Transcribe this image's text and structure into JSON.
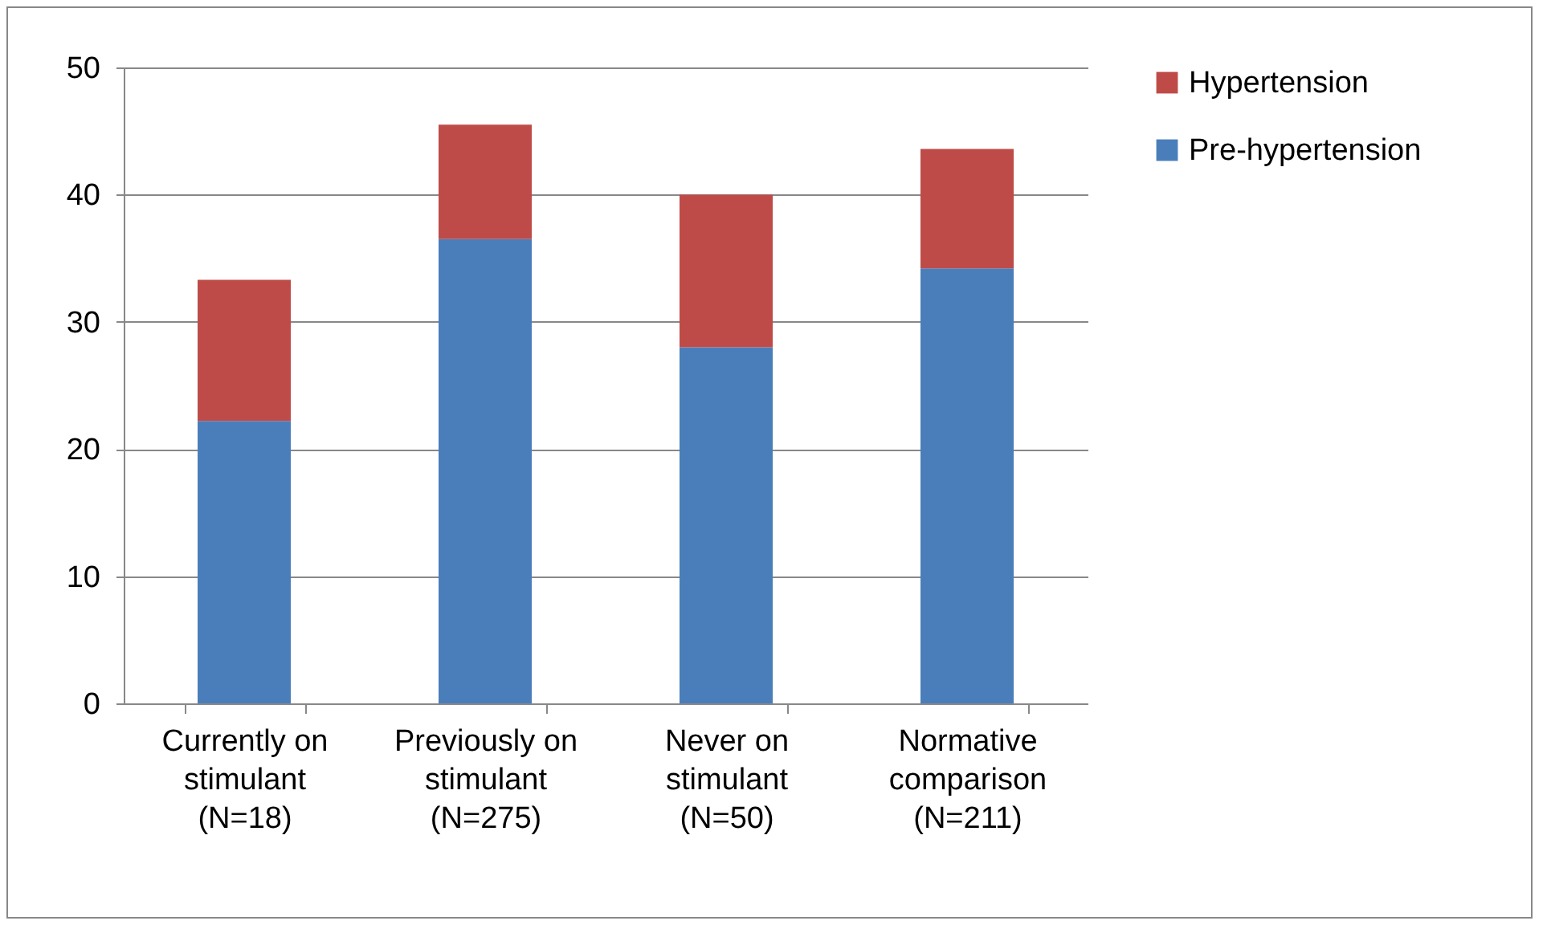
{
  "chart_data": {
    "type": "bar",
    "stacked": true,
    "categories": [
      "Currently on stimulant (N=18)",
      "Previously on stimulant (N=275)",
      "Never on stimulant (N=50)",
      "Normative comparison (N=211)"
    ],
    "series": [
      {
        "name": "Pre-hypertension",
        "color": "#4a7ebb",
        "values": [
          22.2,
          36.5,
          28.0,
          34.2
        ]
      },
      {
        "name": "Hypertension",
        "color": "#be4b48",
        "values": [
          11.1,
          9.0,
          12.0,
          9.4
        ]
      }
    ],
    "ylim": [
      0,
      50
    ],
    "yticks": [
      0,
      10,
      20,
      30,
      40,
      50
    ],
    "grid": "y",
    "legend": "right"
  }
}
